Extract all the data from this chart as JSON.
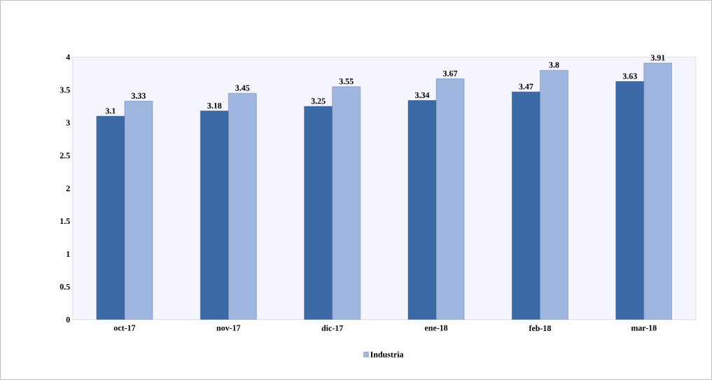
{
  "chart_data": {
    "type": "bar",
    "categories": [
      "oct-17",
      "nov-17",
      "dic-17",
      "ene-18",
      "feb-18",
      "mar-18"
    ],
    "series": [
      {
        "color": "#3b6aa6",
        "values": [
          3.1,
          3.18,
          3.25,
          3.34,
          3.47,
          3.63
        ]
      },
      {
        "name": "Industria",
        "color": "#9fb6e0",
        "values": [
          3.33,
          3.45,
          3.55,
          3.67,
          3.8,
          3.91
        ]
      }
    ],
    "ylim": [
      0,
      4
    ],
    "yticks": [
      0,
      0.5,
      1,
      1.5,
      2,
      2.5,
      3,
      3.5,
      4
    ],
    "data_labels": true,
    "legend": "bottom",
    "grid": false
  }
}
